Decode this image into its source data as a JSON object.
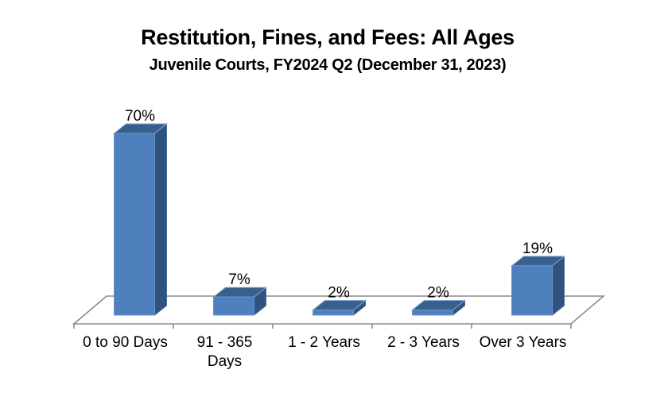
{
  "chart": {
    "title": "Restitution, Fines, and Fees: All Ages",
    "subtitle": "Juvenile Courts, FY2024 Q2 (December 31, 2023)"
  },
  "chart_data": {
    "type": "bar",
    "style": "3d-column",
    "title": "Restitution, Fines, and Fees: All Ages",
    "subtitle": "Juvenile Courts, FY2024 Q2 (December 31, 2023)",
    "categories": [
      "0 to 90 Days",
      "91 - 365 Days",
      "1 - 2 Years",
      "2 - 3 Years",
      "Over 3 Years"
    ],
    "category_label_lines": [
      [
        "0 to 90 Days"
      ],
      [
        "91 - 365",
        "Days"
      ],
      [
        "1 - 2 Years"
      ],
      [
        "2 - 3 Years"
      ],
      [
        "Over 3 Years"
      ]
    ],
    "values": [
      70,
      7,
      2,
      2,
      19
    ],
    "value_labels": [
      "70%",
      "7%",
      "2%",
      "2%",
      "19%"
    ],
    "unit": "%",
    "xlabel": "",
    "ylabel": "",
    "ylim": [
      0,
      75
    ],
    "grid": false,
    "legend": false,
    "y_axis_shown": false
  },
  "colors": {
    "bar_front": "#4e80bd",
    "bar_top": "#38608c",
    "bar_side": "#2f527e",
    "edge_front": "#6b94c6",
    "edge_top": "#84a7d4",
    "edge_side": "#456b9b",
    "axis_line": "#8a8a8a",
    "label_text": "#000000",
    "background": "#ffffff"
  }
}
